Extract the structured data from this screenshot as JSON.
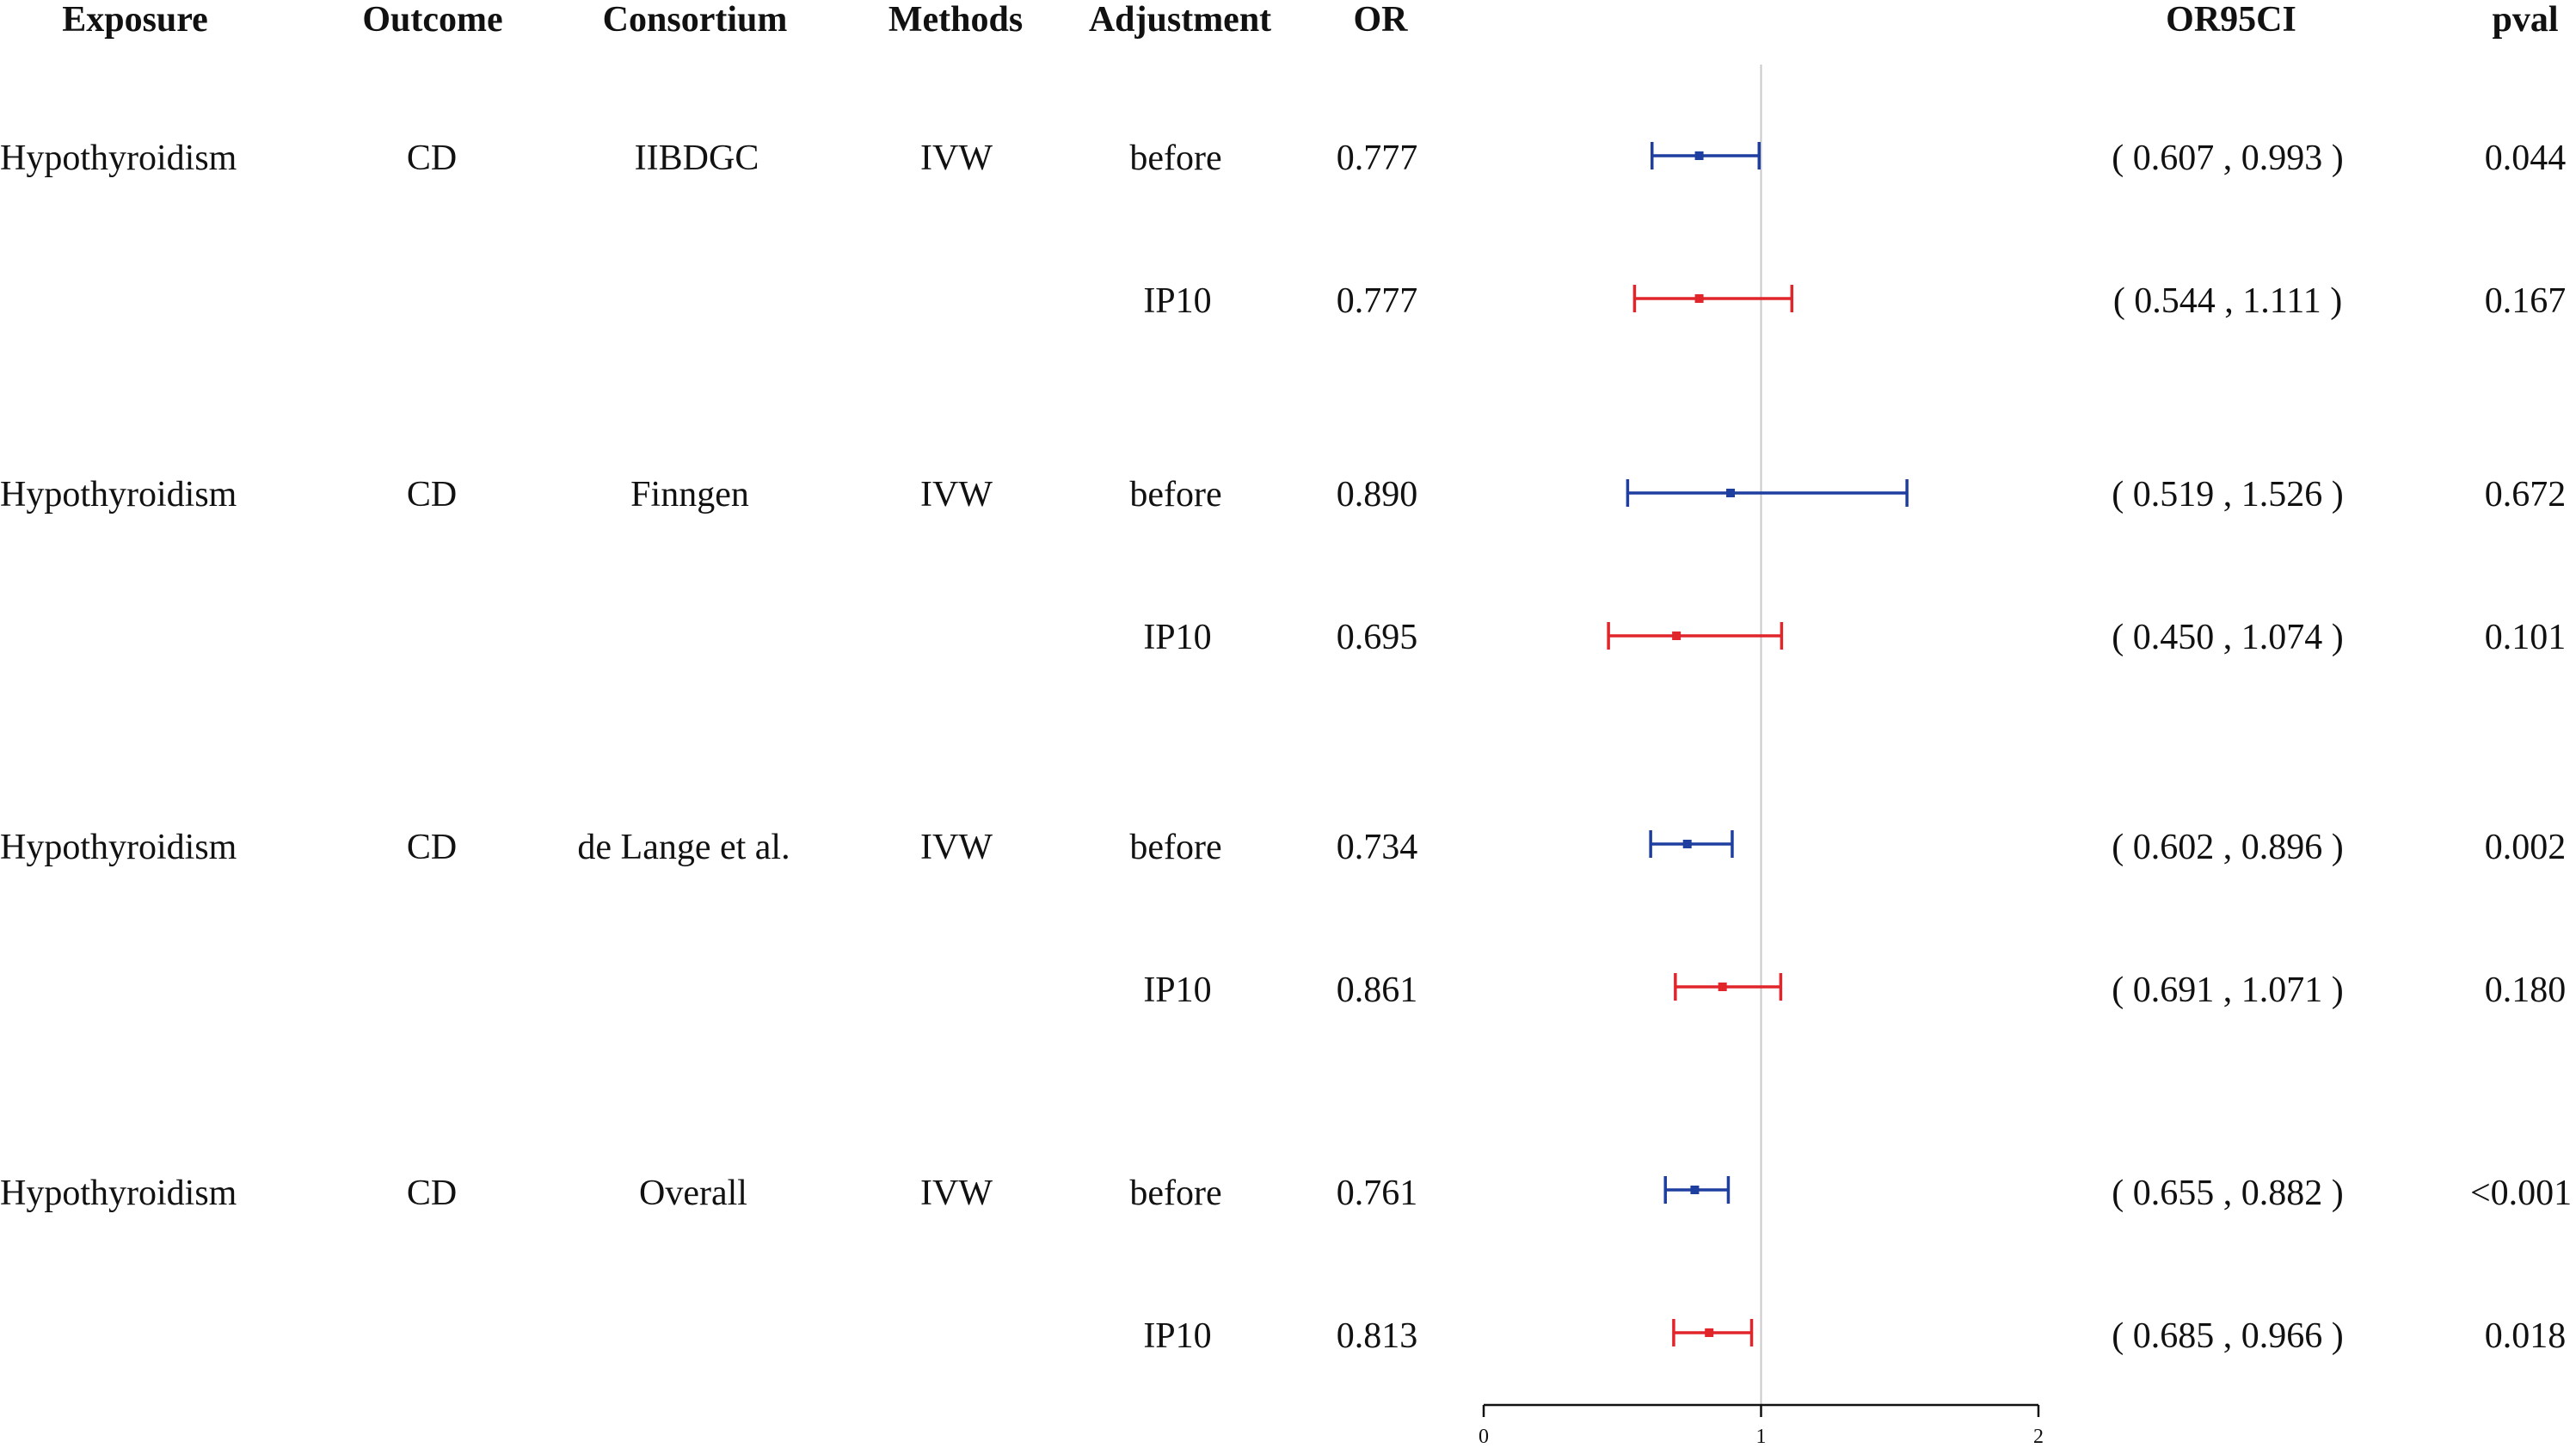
{
  "chart_data": {
    "type": "forest",
    "columns": {
      "exposure": "Exposure",
      "outcome": "Outcome",
      "consortium": "Consortium",
      "methods": "Methods",
      "adjustment": "Adjustment",
      "or": "OR",
      "ci": "OR95CI",
      "pval": "pval"
    },
    "rows": [
      {
        "exposure": "Hypothyroidism",
        "outcome": "CD",
        "consortium": "IIBDGC",
        "method": "IVW",
        "adjustment": "before",
        "or_text": "0.777",
        "ci_text": "( 0.607 , 0.993 )",
        "pval": "0.044",
        "or": 0.777,
        "lower": 0.607,
        "upper": 0.993,
        "color": "#1f3fa0"
      },
      {
        "exposure": "",
        "outcome": "",
        "consortium": "",
        "method": "",
        "adjustment": "IP10",
        "or_text": "0.777",
        "ci_text": "( 0.544 , 1.111 )",
        "pval": "0.167",
        "or": 0.777,
        "lower": 0.544,
        "upper": 1.111,
        "color": "#e0252b"
      },
      {
        "exposure": "Hypothyroidism",
        "outcome": "CD",
        "consortium": "Finngen",
        "method": "IVW",
        "adjustment": "before",
        "or_text": "0.890",
        "ci_text": "( 0.519 , 1.526 )",
        "pval": "0.672",
        "or": 0.89,
        "lower": 0.519,
        "upper": 1.526,
        "color": "#1f3fa0"
      },
      {
        "exposure": "",
        "outcome": "",
        "consortium": "",
        "method": "",
        "adjustment": "IP10",
        "or_text": "0.695",
        "ci_text": "( 0.450 , 1.074 )",
        "pval": "0.101",
        "or": 0.695,
        "lower": 0.45,
        "upper": 1.074,
        "color": "#e0252b"
      },
      {
        "exposure": "Hypothyroidism",
        "outcome": "CD",
        "consortium": "de Lange et al.",
        "method": "IVW",
        "adjustment": "before",
        "or_text": "0.734",
        "ci_text": "( 0.602 , 0.896 )",
        "pval": "0.002",
        "or": 0.734,
        "lower": 0.602,
        "upper": 0.896,
        "color": "#1f3fa0"
      },
      {
        "exposure": "",
        "outcome": "",
        "consortium": "",
        "method": "",
        "adjustment": "IP10",
        "or_text": "0.861",
        "ci_text": "( 0.691 , 1.071 )",
        "pval": "0.180",
        "or": 0.861,
        "lower": 0.691,
        "upper": 1.071,
        "color": "#e0252b"
      },
      {
        "exposure": "Hypothyroidism",
        "outcome": "CD",
        "consortium": "Overall",
        "method": "IVW",
        "adjustment": "before",
        "or_text": "0.761",
        "ci_text": "( 0.655 , 0.882 )",
        "pval": "<0.001",
        "or": 0.761,
        "lower": 0.655,
        "upper": 0.882,
        "color": "#1f3fa0"
      },
      {
        "exposure": "",
        "outcome": "",
        "consortium": "",
        "method": "",
        "adjustment": "IP10",
        "or_text": "0.813",
        "ci_text": "( 0.685 , 0.966 )",
        "pval": "0.018",
        "or": 0.813,
        "lower": 0.685,
        "upper": 0.966,
        "color": "#e0252b"
      }
    ],
    "xaxis": {
      "min": 0,
      "max": 2,
      "ticks": [
        "0",
        "1",
        "2"
      ],
      "reference_line": 1
    }
  }
}
